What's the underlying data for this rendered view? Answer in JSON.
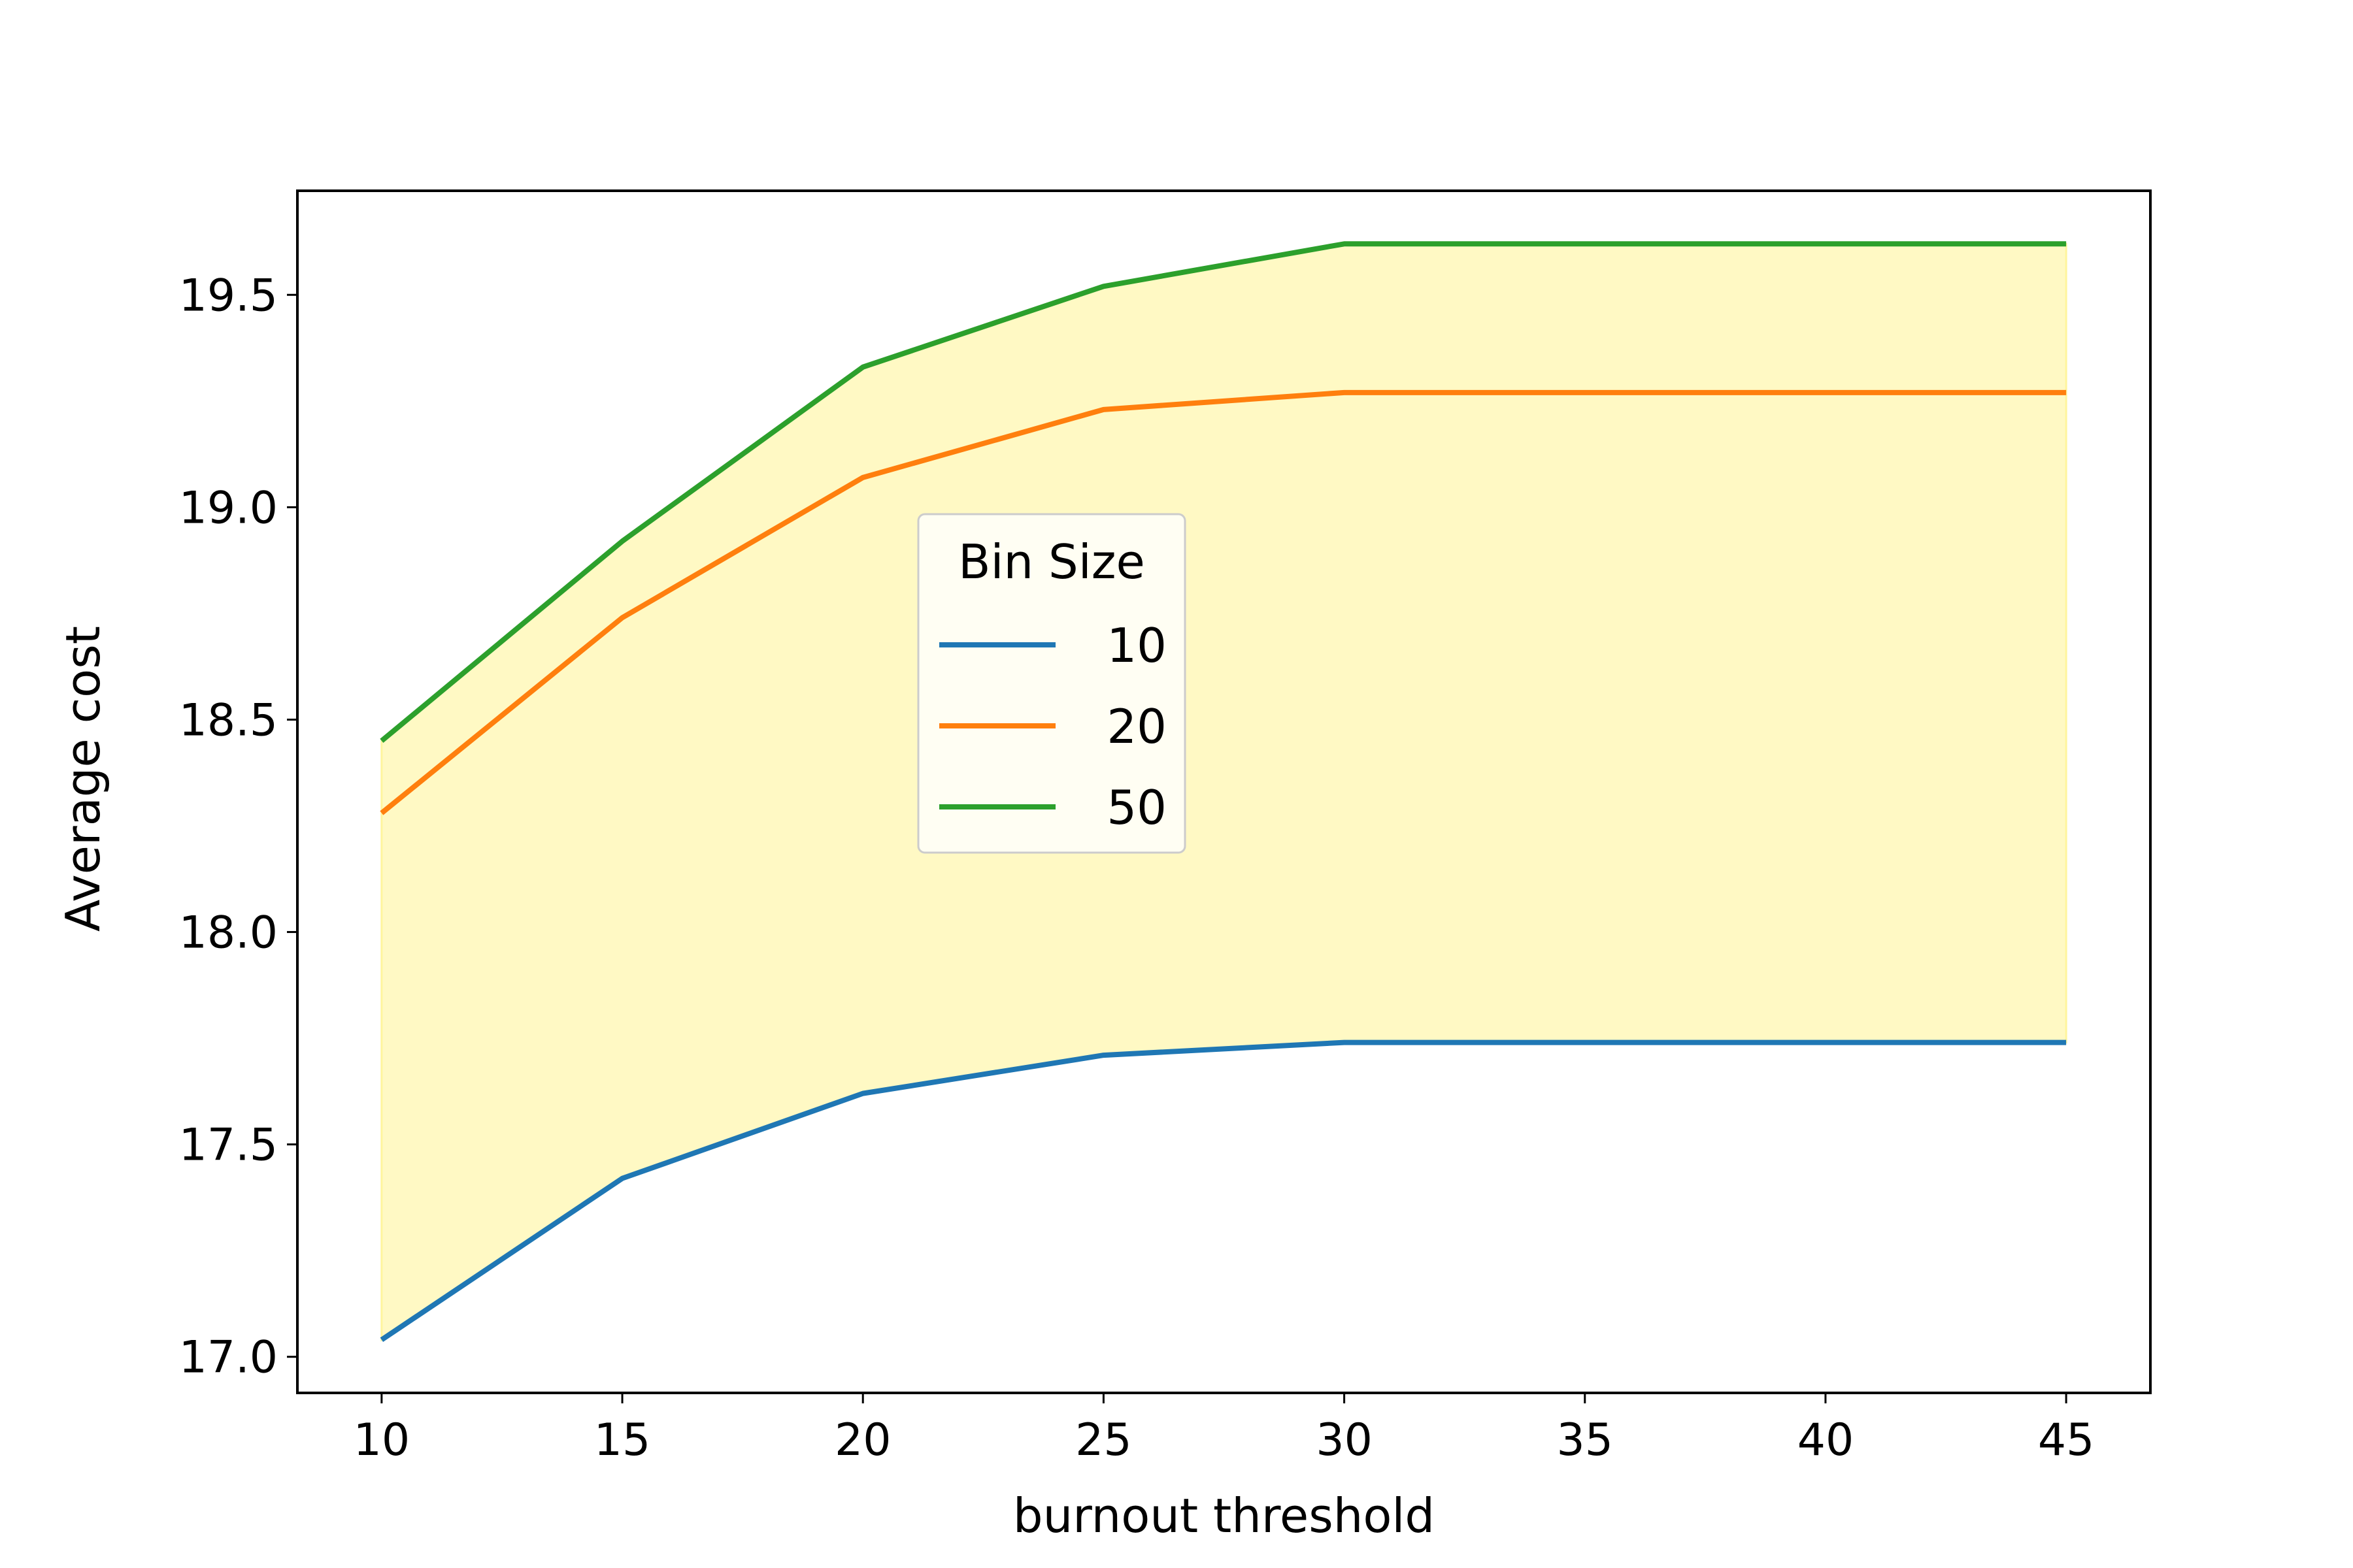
{
  "chart_data": {
    "type": "line",
    "title": "",
    "xlabel": "burnout threshold",
    "ylabel": "Average cost",
    "x": [
      10,
      15,
      20,
      25,
      30,
      35,
      40,
      45
    ],
    "series": [
      {
        "name": "10",
        "color": "#1f77b4",
        "values": [
          17.04,
          17.42,
          17.62,
          17.71,
          17.74,
          17.74,
          17.74,
          17.74
        ]
      },
      {
        "name": "20",
        "color": "#ff7f0e",
        "values": [
          18.28,
          18.74,
          19.07,
          19.23,
          19.27,
          19.27,
          19.27,
          19.27
        ]
      },
      {
        "name": "50",
        "color": "#2ca02c",
        "values": [
          18.45,
          18.92,
          19.33,
          19.52,
          19.62,
          19.62,
          19.62,
          19.62
        ]
      }
    ],
    "fill_between": {
      "lower_series": "10",
      "upper_series": "50",
      "color": "#fff9c4",
      "edge_color": "#fff59d"
    },
    "xlim": [
      8.25,
      46.75
    ],
    "ylim": [
      16.915,
      19.745
    ],
    "xticks": [
      "10",
      "15",
      "20",
      "25",
      "30",
      "35",
      "40",
      "45"
    ],
    "yticks": [
      "17.0",
      "17.5",
      "18.0",
      "18.5",
      "19.0",
      "19.5"
    ],
    "grid": false,
    "legend": {
      "title": "Bin Size",
      "placement": "center"
    }
  }
}
